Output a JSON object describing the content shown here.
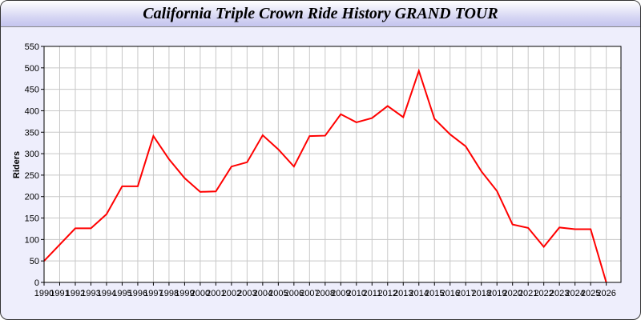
{
  "chart_data": {
    "type": "line",
    "title": "California Triple Crown Ride History GRAND TOUR",
    "xlabel": "",
    "ylabel": "Riders",
    "xlim": [
      1990,
      2027
    ],
    "ylim": [
      0,
      550
    ],
    "grid": true,
    "y_ticks": [
      0,
      50,
      100,
      150,
      200,
      250,
      300,
      350,
      400,
      450,
      500,
      550
    ],
    "x": [
      1990,
      1991,
      1992,
      1993,
      1994,
      1995,
      1996,
      1997,
      1998,
      1999,
      2000,
      2001,
      2002,
      2003,
      2004,
      2005,
      2006,
      2007,
      2008,
      2009,
      2010,
      2011,
      2012,
      2013,
      2014,
      2015,
      2016,
      2017,
      2018,
      2019,
      2020,
      2021,
      2022,
      2023,
      2024,
      2025,
      2026
    ],
    "series": [
      {
        "color": "#ff0000",
        "values": [
          50,
          88,
          126,
          126,
          159,
          224,
          224,
          341,
          287,
          243,
          211,
          212,
          270,
          280,
          343,
          310,
          270,
          341,
          342,
          392,
          373,
          383,
          411,
          385,
          493,
          381,
          345,
          317,
          259,
          213,
          135,
          127,
          83,
          128,
          124,
          124,
          0
        ]
      }
    ]
  }
}
